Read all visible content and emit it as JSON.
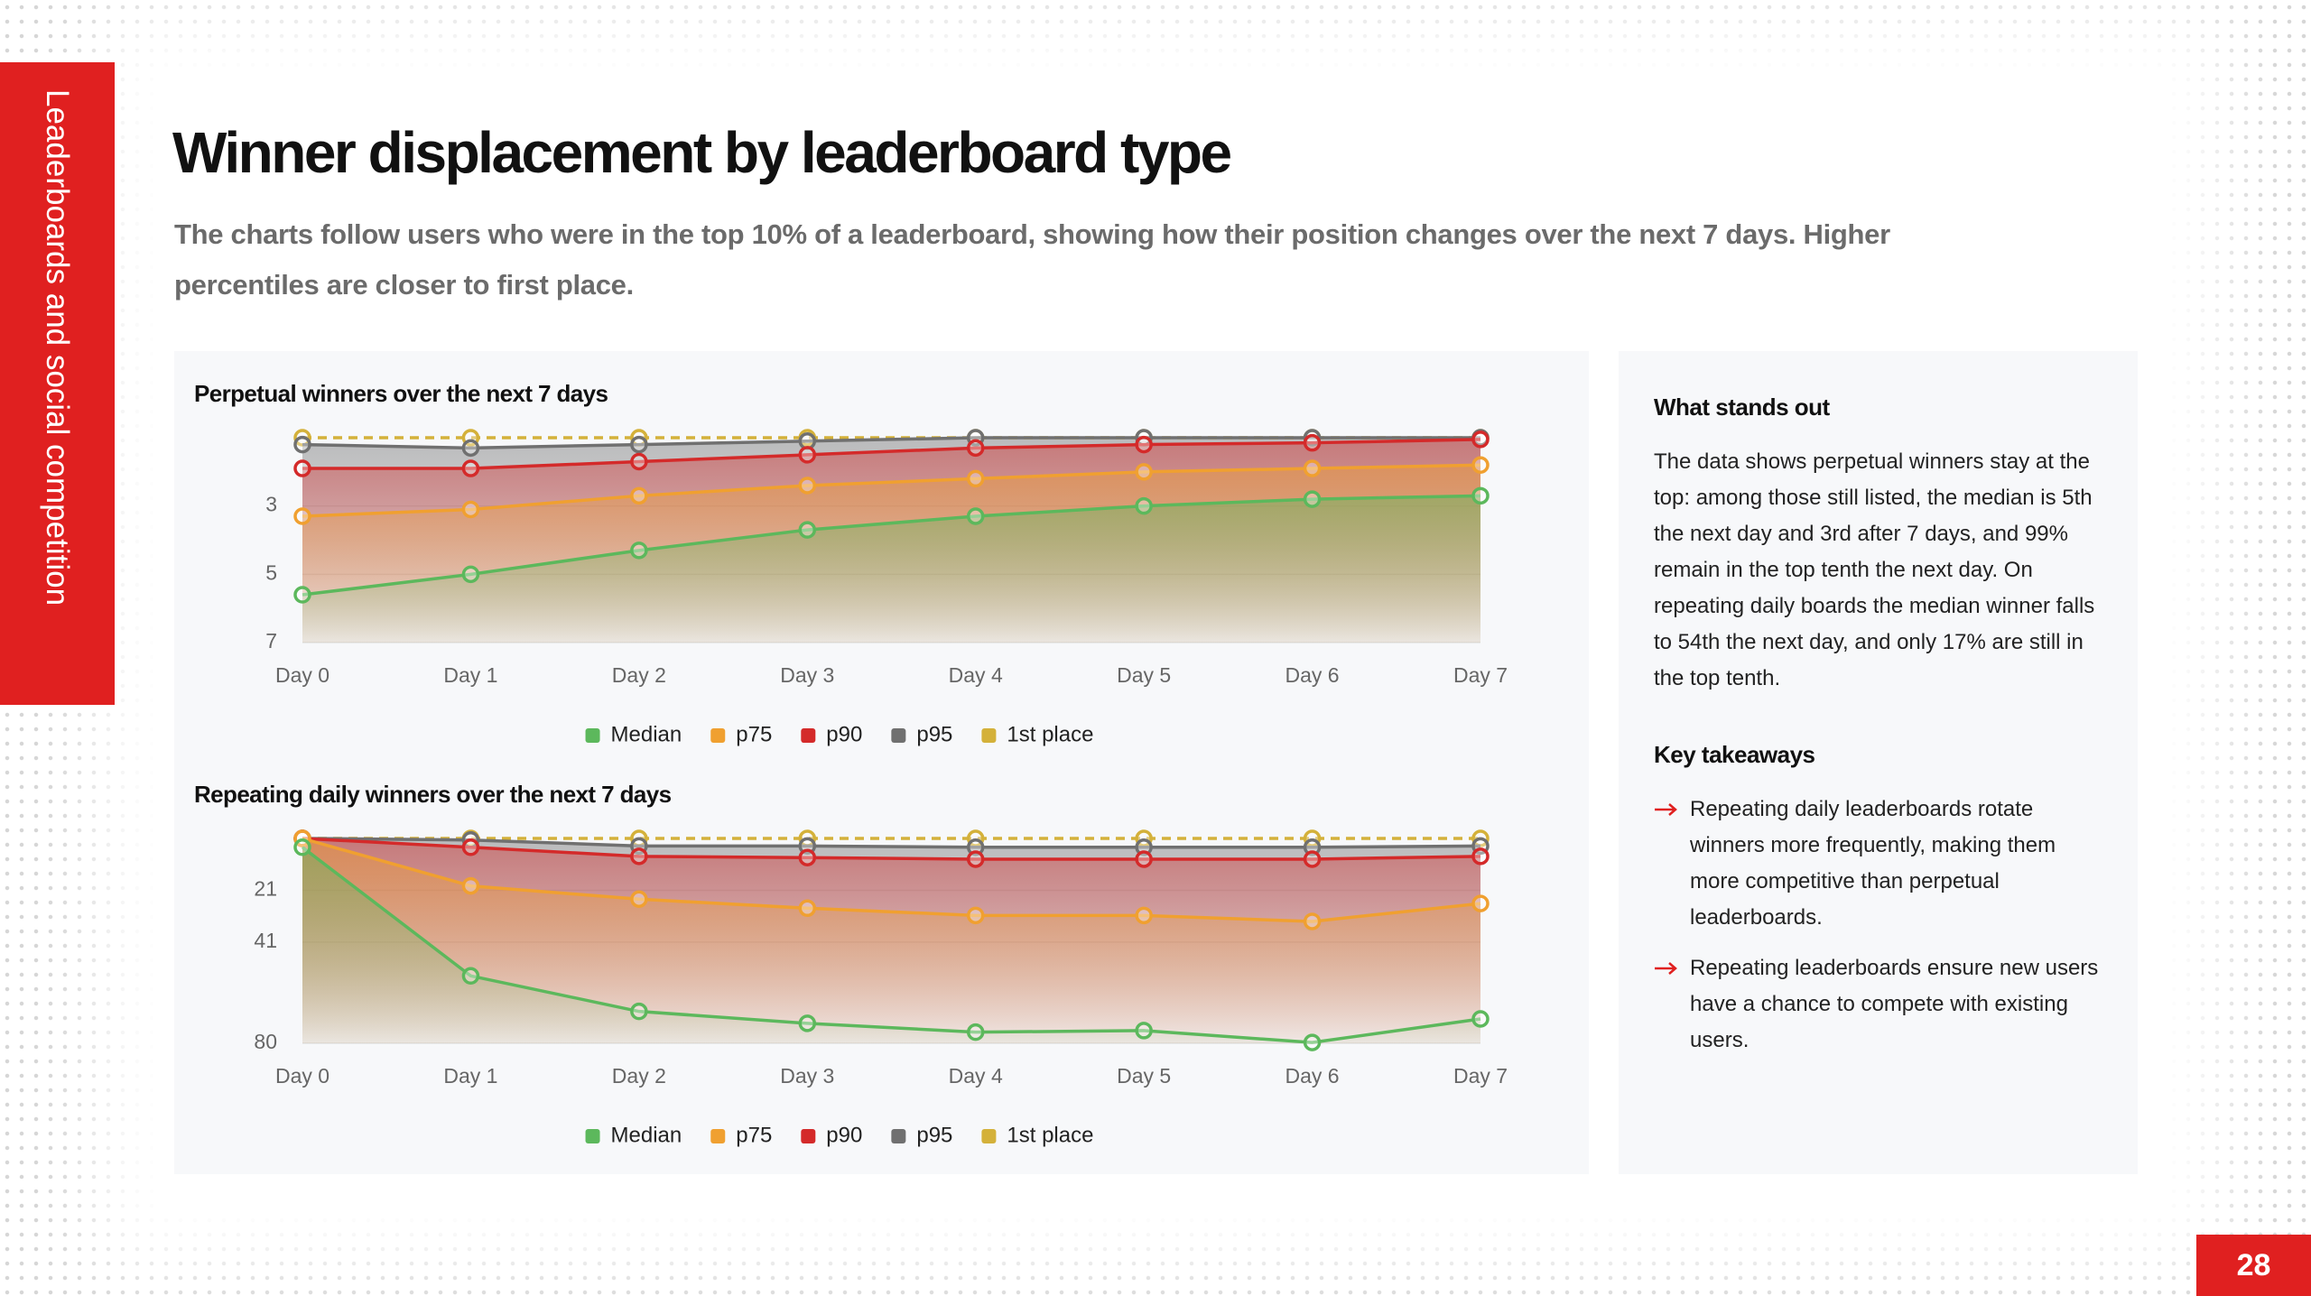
{
  "sidebar": "Leaderboards and social competition",
  "header": {
    "title": "Winner displacement by leaderboard type",
    "subtitle": "The charts follow users who were in the top 10% of a leaderboard, showing how their position changes over the next 7 days. Higher percentiles are closer to first place."
  },
  "chart_data": [
    {
      "type": "line",
      "title": "Perpetual winners over the next 7 days",
      "categories": [
        "Day 0",
        "Day 1",
        "Day 2",
        "Day 3",
        "Day 4",
        "Day 5",
        "Day 6",
        "Day 7"
      ],
      "series": [
        {
          "name": "Median",
          "color": "#5cb85c",
          "values": [
            5.6,
            5.0,
            4.3,
            3.7,
            3.3,
            3.0,
            2.8,
            2.7
          ]
        },
        {
          "name": "p75",
          "color": "#f0a030",
          "values": [
            3.3,
            3.1,
            2.7,
            2.4,
            2.2,
            2.0,
            1.9,
            1.8
          ]
        },
        {
          "name": "p90",
          "color": "#d42a2a",
          "values": [
            1.9,
            1.9,
            1.7,
            1.5,
            1.3,
            1.2,
            1.15,
            1.05
          ]
        },
        {
          "name": "p95",
          "color": "#707070",
          "values": [
            1.2,
            1.3,
            1.2,
            1.1,
            1.0,
            1.0,
            1.0,
            1.0
          ]
        },
        {
          "name": "1st place",
          "color": "#d4b13a",
          "style": "dashed",
          "values": [
            1,
            1,
            1,
            1,
            1,
            1,
            1,
            1
          ]
        }
      ],
      "ylim": [
        7,
        1
      ],
      "yticks": [
        3,
        5,
        7
      ],
      "grid": true,
      "legend": "bottom"
    },
    {
      "type": "line",
      "title": "Repeating daily winners over the next 7 days",
      "categories": [
        "Day 0",
        "Day 1",
        "Day 2",
        "Day 3",
        "Day 4",
        "Day 5",
        "Day 6",
        "Day 7"
      ],
      "series": [
        {
          "name": "Median",
          "color": "#5cb85c",
          "values": [
            4.4,
            54,
            67.7,
            72.3,
            75.7,
            75.1,
            79.7,
            70.6
          ]
        },
        {
          "name": "p75",
          "color": "#f0a030",
          "values": [
            1,
            19.3,
            24.4,
            27.9,
            30.7,
            30.7,
            33,
            26.1
          ]
        },
        {
          "name": "p90",
          "color": "#d42a2a",
          "values": [
            1,
            4.4,
            7.9,
            8.4,
            9,
            9,
            9,
            7.9
          ]
        },
        {
          "name": "p95",
          "color": "#707070",
          "values": [
            1,
            1.6,
            3.9,
            3.9,
            4.4,
            4.4,
            4.4,
            3.9
          ]
        },
        {
          "name": "1st place",
          "color": "#d4b13a",
          "style": "dashed",
          "values": [
            1,
            1,
            1,
            1,
            1,
            1,
            1,
            1
          ]
        }
      ],
      "ylim": [
        80,
        1
      ],
      "yticks": [
        21,
        41,
        80
      ],
      "grid": true,
      "legend": "bottom"
    }
  ],
  "panel": {
    "heading": "What stands out",
    "body": "The data shows perpetual winners stay at the top: among those still listed, the median is 5th the next day and 3rd after 7 days, and 99% remain in the top tenth the next day. On repeating daily boards the median winner falls to 54th the next day, and only 17% are still in the top tenth.",
    "takeaways_heading": "Key takeaways",
    "takeaways": [
      "Repeating daily leaderboards rotate winners more frequently, making them more competitive than perpetual leaderboards.",
      "Repeating leaderboards ensure new users have a chance to compete with existing users."
    ]
  },
  "page_number": "28"
}
